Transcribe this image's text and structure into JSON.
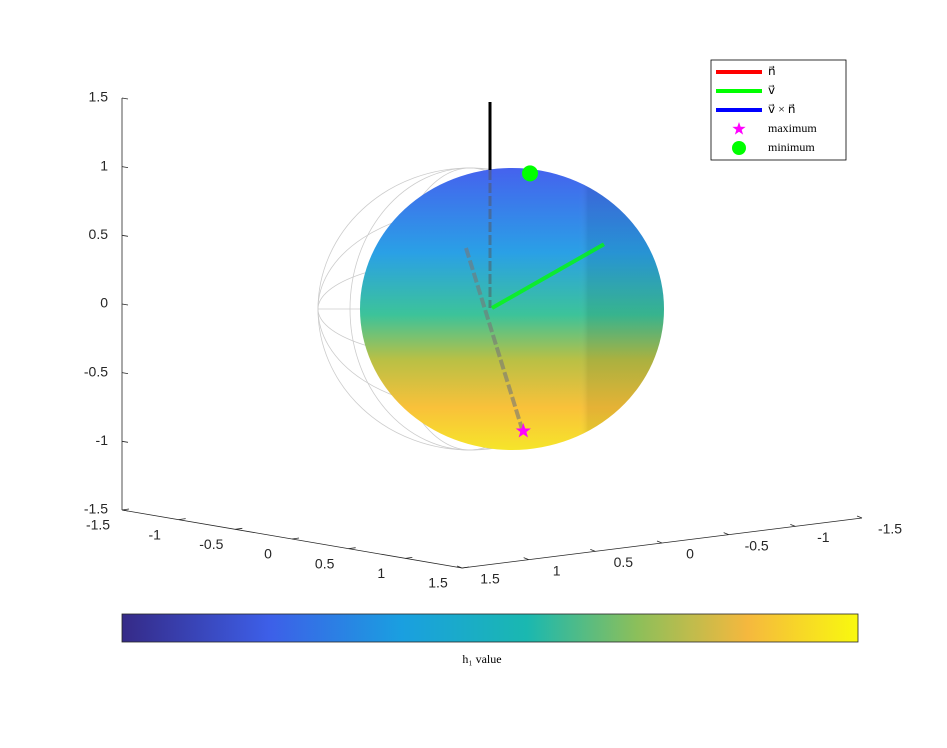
{
  "chart_data": {
    "type": "surface3d",
    "xlim": [
      -1.5,
      1.5
    ],
    "ylim": [
      -1.5,
      1.5
    ],
    "zlim": [
      -1.5,
      1.5
    ],
    "xticks": [
      -1.5,
      -1,
      -0.5,
      0,
      0.5,
      1,
      1.5
    ],
    "yticks": [
      -1.5,
      -1,
      -0.5,
      0,
      0.5,
      1,
      1.5
    ],
    "zticks": [
      -1.5,
      -1,
      -0.5,
      0,
      0.5,
      1,
      1.5
    ],
    "series": [
      {
        "name": "n⃗",
        "color": "#ff0000"
      },
      {
        "name": "v⃗",
        "color": "#00ff00",
        "values": [
          0.4,
          -0.5,
          0.46
        ]
      },
      {
        "name": "v⃗ × n⃗",
        "color": "#0000ff"
      },
      {
        "name": "maximum",
        "color": "#ff00ff",
        "marker": "star",
        "values": [
          0.1,
          -0.15,
          -0.9
        ]
      },
      {
        "name": "minimum",
        "color": "#00ff00",
        "marker": "circle",
        "values": [
          0.1,
          -0.2,
          0.97
        ]
      }
    ],
    "colorbar_label": "h₁ value",
    "legend": "upper right"
  }
}
